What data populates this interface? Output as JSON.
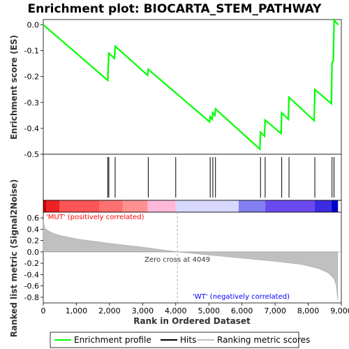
{
  "chart_data": {
    "type": "line",
    "title": "Enrichment plot: BIOCARTA_STEM_PATHWAY",
    "top_panel": {
      "ylabel": "Enrichment score (ES)",
      "ylim": [
        -0.5,
        0.02
      ],
      "yticks": [
        0.0,
        -0.1,
        -0.2,
        -0.3,
        -0.4,
        -0.5
      ],
      "series": [
        {
          "name": "Enrichment profile",
          "color": "#00ff00",
          "points": [
            [
              0,
              0.0
            ],
            [
              1950,
              -0.215
            ],
            [
              1960,
              -0.165
            ],
            [
              1980,
              -0.11
            ],
            [
              2150,
              -0.13
            ],
            [
              2170,
              -0.083
            ],
            [
              3150,
              -0.195
            ],
            [
              3170,
              -0.172
            ],
            [
              5020,
              -0.375
            ],
            [
              5040,
              -0.355
            ],
            [
              5100,
              -0.365
            ],
            [
              5120,
              -0.34
            ],
            [
              5180,
              -0.35
            ],
            [
              5200,
              -0.325
            ],
            [
              6540,
              -0.48
            ],
            [
              6560,
              -0.415
            ],
            [
              6680,
              -0.43
            ],
            [
              6700,
              -0.368
            ],
            [
              7180,
              -0.42
            ],
            [
              7200,
              -0.34
            ],
            [
              7400,
              -0.365
            ],
            [
              7420,
              -0.28
            ],
            [
              8180,
              -0.37
            ],
            [
              8200,
              -0.25
            ],
            [
              8700,
              -0.305
            ],
            [
              8720,
              -0.145
            ],
            [
              8760,
              -0.14
            ],
            [
              8780,
              0.018
            ],
            [
              8900,
              0.0
            ]
          ]
        }
      ]
    },
    "hits": [
      1950,
      1980,
      2170,
      3170,
      4000,
      5040,
      5120,
      5200,
      6560,
      6700,
      7200,
      7420,
      8200,
      8720,
      8780
    ],
    "bottom_panel": {
      "ylabel": "Ranked list metric (Signal2Noise)",
      "ylim": [
        -0.9,
        0.7
      ],
      "yticks": [
        0.6,
        0.4,
        0.2,
        0.0,
        -0.2,
        -0.4,
        -0.6,
        -0.8
      ],
      "metric_curve": [
        [
          0,
          0.55
        ],
        [
          50,
          0.42
        ],
        [
          150,
          0.37
        ],
        [
          300,
          0.33
        ],
        [
          500,
          0.29
        ],
        [
          1000,
          0.23
        ],
        [
          2000,
          0.15
        ],
        [
          3000,
          0.085
        ],
        [
          4049,
          0.0
        ],
        [
          5000,
          -0.055
        ],
        [
          6000,
          -0.11
        ],
        [
          7000,
          -0.165
        ],
        [
          7800,
          -0.22
        ],
        [
          8300,
          -0.29
        ],
        [
          8600,
          -0.37
        ],
        [
          8780,
          -0.47
        ],
        [
          8850,
          -0.6
        ],
        [
          8890,
          -0.85
        ]
      ],
      "zero_cross_label": "Zero cross at 4049",
      "positive_label": "'MUT' (positively correlated)",
      "negative_label": "'WT' (negatively correlated)",
      "positive_color": "#ff0000",
      "negative_color": "#0000ff"
    },
    "xlabel": "Rank in Ordered Dataset",
    "xlim": [
      0,
      9000
    ],
    "xticks": [
      0,
      1000,
      2000,
      3000,
      4000,
      5000,
      6000,
      7000,
      8000,
      9000
    ],
    "xtick_labels": [
      "0",
      "1,000",
      "2,000",
      "3,000",
      "4,000",
      "5,000",
      "6,000",
      "7,000",
      "8,000",
      "9,000"
    ],
    "color_band": [
      {
        "from": 0,
        "to": 100,
        "color": "#cc0000"
      },
      {
        "from": 100,
        "to": 500,
        "color": "#ee2222"
      },
      {
        "from": 500,
        "to": 1700,
        "color": "#ff5555"
      },
      {
        "from": 1700,
        "to": 2400,
        "color": "#ff7070"
      },
      {
        "from": 2400,
        "to": 3150,
        "color": "#ff9090"
      },
      {
        "from": 3150,
        "to": 4000,
        "color": "#ffb8d8"
      },
      {
        "from": 4000,
        "to": 5900,
        "color": "#d8d8ff"
      },
      {
        "from": 5900,
        "to": 6700,
        "color": "#8080f0"
      },
      {
        "from": 6700,
        "to": 8200,
        "color": "#6a4aef"
      },
      {
        "from": 8200,
        "to": 8700,
        "color": "#3a2ae0"
      },
      {
        "from": 8700,
        "to": 8900,
        "color": "#0000cc"
      }
    ],
    "legend": {
      "placement": "bottom",
      "items": [
        {
          "label": "Enrichment profile",
          "color": "#00ff00"
        },
        {
          "label": "Hits",
          "color": "#000000"
        },
        {
          "label": "Ranking metric scores",
          "color": "#c0c0c0"
        }
      ]
    }
  }
}
